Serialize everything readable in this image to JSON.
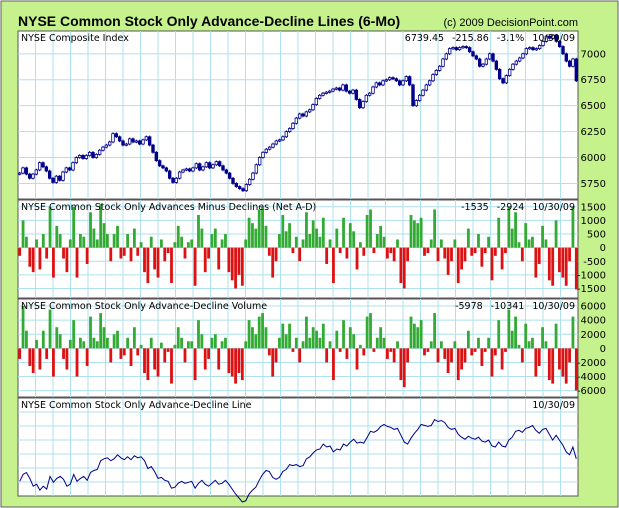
{
  "title": "NYSE Common Stock Only Advance-Decline Lines (6-Mo)",
  "copyright": "(c) 2009 DecisionPoint.com",
  "colors": {
    "frame": "#c6f28e",
    "grid": "#aee0ee",
    "line": "#00008b",
    "positive": "#33aa33",
    "negative": "#dd1111"
  },
  "chart_data": [
    {
      "type": "candlestick",
      "name": "NYSE Composite Index",
      "readout": {
        "close": "6739.45",
        "change": "-215.86",
        "pct": "-3.1%",
        "date": "10/30/09"
      },
      "yticks": [
        "7000",
        "6750",
        "6500",
        "6250",
        "6000",
        "5750"
      ],
      "ylim": [
        5600,
        7220
      ],
      "close": [
        5850,
        5900,
        5840,
        5800,
        5840,
        5880,
        5950,
        5910,
        5870,
        5800,
        5760,
        5820,
        5780,
        5860,
        5900,
        5880,
        5950,
        6000,
        6020,
        5990,
        6020,
        6050,
        6000,
        6030,
        6070,
        6100,
        6120,
        6150,
        6230,
        6200,
        6160,
        6120,
        6130,
        6180,
        6150,
        6160,
        6130,
        6170,
        6200,
        6120,
        6050,
        5970,
        5920,
        5900,
        5870,
        5800,
        5760,
        5800,
        5860,
        5880,
        5890,
        5870,
        5900,
        5940,
        5880,
        5910,
        5950,
        5900,
        5930,
        5960,
        5920,
        5880,
        5850,
        5800,
        5750,
        5720,
        5700,
        5680,
        5740,
        5790,
        5850,
        5930,
        6000,
        6050,
        6080,
        6100,
        6130,
        6160,
        6170,
        6200,
        6250,
        6280,
        6330,
        6380,
        6420,
        6400,
        6440,
        6460,
        6510,
        6570,
        6600,
        6620,
        6630,
        6640,
        6660,
        6670,
        6650,
        6700,
        6640,
        6620,
        6650,
        6560,
        6480,
        6540,
        6600,
        6620,
        6680,
        6720,
        6700,
        6740,
        6750,
        6770,
        6760,
        6740,
        6700,
        6740,
        6780,
        6700,
        6500,
        6550,
        6600,
        6650,
        6700,
        6740,
        6800,
        6840,
        6880,
        6950,
        7000,
        7050,
        7060,
        7040,
        7060,
        7070,
        7060,
        7020,
        6980,
        6950,
        6880,
        6900,
        6950,
        7000,
        6930,
        6850,
        6760,
        6720,
        6790,
        6850,
        6900,
        6930,
        6960,
        7000,
        7050,
        7060,
        7040,
        7050,
        7080,
        7120,
        7170,
        7150,
        7180,
        7120,
        7070,
        7000,
        6930,
        6880,
        6950,
        6740
      ]
    },
    {
      "type": "bar",
      "name": "NYSE Common Stock Only Advances Minus Declines (Net A-D)",
      "readout": [
        "-1535",
        "-2924",
        "10/30/09"
      ],
      "yticks": [
        "1500",
        "1000",
        "500",
        "0",
        "-500",
        "-1000",
        "-1500"
      ],
      "ylim": [
        -1850,
        1750
      ],
      "values": [
        -300,
        1000,
        400,
        -700,
        -900,
        300,
        -800,
        500,
        -400,
        1500,
        -1100,
        800,
        500,
        -400,
        -900,
        300,
        1500,
        -1100,
        500,
        400,
        -600,
        1300,
        700,
        300,
        1600,
        900,
        500,
        -500,
        500,
        800,
        -400,
        -300,
        500,
        -500,
        700,
        -300,
        200,
        -900,
        -1300,
        400,
        -800,
        -1100,
        300,
        -500,
        -200,
        -1300,
        200,
        800,
        400,
        -400,
        200,
        300,
        -1400,
        1200,
        700,
        -900,
        -400,
        500,
        700,
        -800,
        300,
        500,
        -900,
        -1200,
        -1500,
        -1000,
        -1400,
        300,
        1100,
        900,
        700,
        1400,
        1500,
        800,
        -300,
        -1100,
        -500,
        500,
        1200,
        600,
        900,
        -200,
        400,
        -500,
        300,
        1300,
        500,
        1000,
        700,
        400,
        1100,
        -600,
        300,
        -1300,
        700,
        -200,
        1100,
        -400,
        900,
        600,
        -800,
        200,
        -300,
        1200,
        1400,
        -200,
        500,
        800,
        400,
        -400,
        -200,
        -500,
        300,
        -1300,
        -1500,
        -500,
        1200,
        1000,
        900,
        1100,
        -300,
        -200,
        300,
        1400,
        -500,
        300,
        -400,
        -1000,
        -500,
        300,
        -1300,
        -800,
        -500,
        700,
        -300,
        -200,
        500,
        -700,
        -200,
        400,
        -1200,
        -300,
        1100,
        -800,
        -200,
        1500,
        700,
        1300,
        200,
        -500,
        900,
        300,
        400,
        -1100,
        -600,
        800,
        300,
        -1200,
        -1400,
        1000,
        -900,
        -1100,
        -1400,
        -500,
        1500,
        -1535
      ]
    },
    {
      "type": "bar",
      "name": "NYSE Common Stock Only Advance-Decline Volume",
      "readout": [
        "-5978",
        "-10341",
        "10/30/09"
      ],
      "yticks": [
        "6000",
        "4000",
        "2000",
        "0",
        "-2000",
        "-4000",
        "-6000"
      ],
      "ylim": [
        -6900,
        7000
      ],
      "values": [
        -1500,
        6000,
        2500,
        -2500,
        -3500,
        1200,
        -3000,
        2500,
        -1500,
        5500,
        -4000,
        3000,
        2000,
        -1500,
        -3000,
        1200,
        4000,
        -4000,
        1500,
        1000,
        -2500,
        4500,
        1500,
        1000,
        5000,
        3000,
        1500,
        -2000,
        2000,
        2500,
        -1500,
        -1000,
        1500,
        -2500,
        3000,
        -1000,
        500,
        -3500,
        -4500,
        1500,
        -3000,
        -4000,
        800,
        -2000,
        -500,
        -5000,
        500,
        3000,
        1500,
        -2000,
        1000,
        1000,
        -4500,
        4000,
        2000,
        -3000,
        -1500,
        1500,
        2000,
        -3000,
        1000,
        1500,
        -3500,
        -4000,
        -5000,
        -3500,
        -4500,
        1000,
        4000,
        3000,
        2000,
        4500,
        5000,
        3000,
        -1000,
        -4000,
        -2000,
        1500,
        3500,
        2000,
        3500,
        -500,
        1500,
        -2000,
        1000,
        4500,
        1500,
        3000,
        2500,
        1500,
        3500,
        -2000,
        1000,
        -4500,
        2500,
        -500,
        4000,
        -1500,
        3000,
        2000,
        -3000,
        500,
        -1000,
        4500,
        5000,
        -500,
        1500,
        3000,
        1500,
        -1500,
        -500,
        -2000,
        1000,
        -4500,
        -5500,
        -2000,
        4500,
        3500,
        3000,
        4000,
        -1000,
        -500,
        1000,
        5000,
        -2000,
        1000,
        -1500,
        -3500,
        -2000,
        1000,
        -4500,
        -3000,
        -2000,
        2500,
        -1000,
        -500,
        1500,
        -2500,
        -500,
        1500,
        -4000,
        -1000,
        4000,
        -3000,
        -500,
        5500,
        2500,
        4500,
        500,
        -2000,
        3500,
        1000,
        1500,
        -4000,
        -2500,
        3000,
        1000,
        -4500,
        -5000,
        3500,
        -3000,
        -4000,
        -5000,
        -2000,
        4500,
        -5978
      ]
    },
    {
      "type": "line",
      "name": "NYSE Common Stock Only Advance-Decline Line",
      "readout": [
        "10/30/09"
      ],
      "ylim": [
        0,
        100
      ],
      "values": [
        15,
        22,
        24,
        18,
        10,
        12,
        6,
        10,
        7,
        20,
        14,
        18,
        20,
        17,
        10,
        12,
        22,
        15,
        18,
        20,
        16,
        24,
        26,
        27,
        36,
        38,
        39,
        36,
        38,
        42,
        39,
        37,
        40,
        37,
        41,
        39,
        40,
        36,
        28,
        30,
        25,
        18,
        19,
        16,
        15,
        8,
        9,
        13,
        15,
        13,
        14,
        15,
        8,
        13,
        16,
        12,
        10,
        13,
        16,
        12,
        13,
        16,
        12,
        7,
        2,
        -2,
        -6,
        -5,
        2,
        6,
        9,
        16,
        22,
        26,
        25,
        19,
        17,
        19,
        25,
        27,
        32,
        31,
        32,
        30,
        31,
        38,
        40,
        44,
        47,
        48,
        53,
        50,
        51,
        45,
        48,
        47,
        53,
        51,
        55,
        58,
        54,
        55,
        54,
        60,
        66,
        65,
        67,
        71,
        73,
        71,
        70,
        68,
        69,
        62,
        55,
        53,
        59,
        64,
        68,
        73,
        72,
        71,
        72,
        78,
        76,
        77,
        75,
        70,
        68,
        69,
        63,
        60,
        58,
        61,
        59,
        58,
        60,
        56,
        55,
        57,
        51,
        50,
        55,
        51,
        50,
        57,
        60,
        66,
        67,
        65,
        69,
        70,
        72,
        67,
        64,
        68,
        69,
        63,
        57,
        62,
        57,
        52,
        45,
        42,
        50,
        38
      ]
    }
  ]
}
